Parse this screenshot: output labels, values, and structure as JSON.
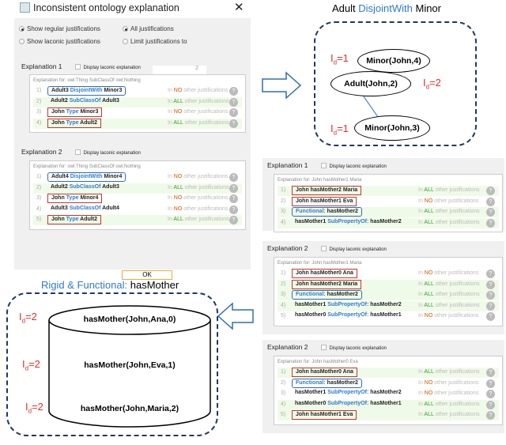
{
  "dialog": {
    "title": "Inconsistent ontology explanation",
    "options": {
      "regular": "Show regular justifications",
      "laconic": "Show laconic justifications",
      "all": "All justifications",
      "limit": "Limit justifications to",
      "limit_value": "2"
    },
    "ok_label": "OK",
    "explanations": [
      {
        "label": "Explanation 1",
        "laconic_label": "Display laconic explanation",
        "for": "Explanation for: owl:Thing SubClassOf owl:Nothing",
        "rows": [
          {
            "n": "1)",
            "parts": [
              [
                "Adult3 ",
                0
              ],
              [
                "DisjointWith",
                1
              ],
              [
                " Minor3",
                0
              ]
            ],
            "box": "blue",
            "status": "NO"
          },
          {
            "n": "2)",
            "parts": [
              [
                "Adult2 ",
                0
              ],
              [
                "SubClassOf",
                1
              ],
              [
                " Adult3",
                0
              ]
            ],
            "box": "",
            "status": "ALL"
          },
          {
            "n": "3)",
            "parts": [
              [
                "John ",
                0
              ],
              [
                "Type",
                1
              ],
              [
                " Minor3",
                0
              ]
            ],
            "box": "red",
            "status": "NO"
          },
          {
            "n": "4)",
            "parts": [
              [
                "John ",
                0
              ],
              [
                "Type",
                1
              ],
              [
                " Adult2",
                0
              ]
            ],
            "box": "red",
            "status": "ALL"
          }
        ]
      },
      {
        "label": "Explanation 2",
        "laconic_label": "Display laconic explanation",
        "for": "Explanation for: owl:Thing SubClassOf owl:Nothing",
        "rows": [
          {
            "n": "1)",
            "parts": [
              [
                "Adult4 ",
                0
              ],
              [
                "DisjointWith",
                1
              ],
              [
                " Minor4",
                0
              ]
            ],
            "box": "blue",
            "status": "NO"
          },
          {
            "n": "2)",
            "parts": [
              [
                "Adult2 ",
                0
              ],
              [
                "SubClassOf",
                1
              ],
              [
                " Adult3",
                0
              ]
            ],
            "box": "",
            "status": "ALL"
          },
          {
            "n": "3)",
            "parts": [
              [
                "John ",
                0
              ],
              [
                "Type",
                1
              ],
              [
                " Minor4",
                0
              ]
            ],
            "box": "red",
            "status": "NO"
          },
          {
            "n": "4)",
            "parts": [
              [
                "Adult3 ",
                0
              ],
              [
                "SubClassOf",
                1
              ],
              [
                " Adult4",
                0
              ]
            ],
            "box": "",
            "status": "NO"
          },
          {
            "n": "5)",
            "parts": [
              [
                "John ",
                0
              ],
              [
                "Type",
                1
              ],
              [
                " Adult2",
                0
              ]
            ],
            "box": "red",
            "status": "ALL"
          }
        ]
      }
    ]
  },
  "panels": [
    {
      "label": "Explanation 1",
      "laconic_label": "Display laconic explanation",
      "for": "Explanation for: John hasMother1 Maria",
      "rows": [
        {
          "n": "1)",
          "parts": [
            [
              "John hasMother2 Maria",
              0
            ]
          ],
          "box": "red",
          "status": "ALL"
        },
        {
          "n": "2)",
          "parts": [
            [
              "John hasMother1 Eva",
              0
            ]
          ],
          "box": "red",
          "status": "NO"
        },
        {
          "n": "3)",
          "parts": [
            [
              "Functional:",
              1
            ],
            [
              " hasMother2",
              0
            ]
          ],
          "box": "blue",
          "status": "ALL"
        },
        {
          "n": "4)",
          "parts": [
            [
              "hasMother1 ",
              0
            ],
            [
              "SubPropertyOf:",
              1
            ],
            [
              " hasMother2",
              0
            ]
          ],
          "box": "",
          "status": "ALL"
        }
      ]
    },
    {
      "label": "Explanation 2",
      "laconic_label": "Display laconic explanation",
      "for": "Explanation for: John hasMother1 Maria",
      "rows": [
        {
          "n": "1)",
          "parts": [
            [
              "John hasMother0 Ana",
              0
            ]
          ],
          "box": "red",
          "status": "NO"
        },
        {
          "n": "2)",
          "parts": [
            [
              "John hasMother2 Maria",
              0
            ]
          ],
          "box": "red",
          "status": "ALL"
        },
        {
          "n": "3)",
          "parts": [
            [
              "Functional:",
              1
            ],
            [
              " hasMother2",
              0
            ]
          ],
          "box": "blue",
          "status": "ALL"
        },
        {
          "n": "4)",
          "parts": [
            [
              "hasMother1 ",
              0
            ],
            [
              "SubPropertyOf:",
              1
            ],
            [
              " hasMother2",
              0
            ]
          ],
          "box": "",
          "status": "ALL"
        },
        {
          "n": "5)",
          "parts": [
            [
              "hasMother0 ",
              0
            ],
            [
              "SubPropertyOf:",
              1
            ],
            [
              " hasMother1",
              0
            ]
          ],
          "box": "",
          "status": "NO"
        }
      ]
    },
    {
      "label": "Explanation 2",
      "laconic_label": "Display laconic explanation",
      "for": "Explanation for: John hasMother0 Eva",
      "rows": [
        {
          "n": "1)",
          "parts": [
            [
              "John hasMother0 Ana",
              0
            ]
          ],
          "box": "red",
          "status": "ALL"
        },
        {
          "n": "2)",
          "parts": [
            [
              "Functional:",
              1
            ],
            [
              " hasMother2",
              0
            ]
          ],
          "box": "blue",
          "status": "NO"
        },
        {
          "n": "3)",
          "parts": [
            [
              "hasMother1 ",
              0
            ],
            [
              "SubPropertyOf:",
              1
            ],
            [
              " hasMother2",
              0
            ]
          ],
          "box": "",
          "status": "NO"
        },
        {
          "n": "4)",
          "parts": [
            [
              "hasMother0 ",
              0
            ],
            [
              "SubPropertyOf:",
              1
            ],
            [
              " hasMother1",
              0
            ]
          ],
          "box": "",
          "status": "ALL"
        },
        {
          "n": "5)",
          "parts": [
            [
              "John hasMother1 Eva",
              0
            ]
          ],
          "box": "red",
          "status": "ALL"
        }
      ]
    }
  ],
  "status_text": {
    "prefix": "In",
    "suffix": "other justifications",
    "help": "?"
  },
  "diagram_top": {
    "title_a": "Adult ",
    "title_b": "DisjointWith",
    "title_c": " Minor",
    "nodes": [
      "Minor(John,4)",
      "Adult(John,2)",
      "Minor(John,3)"
    ],
    "labels": [
      "I",
      "d",
      "=1",
      "=2"
    ]
  },
  "diagram_bottom": {
    "title_a": "Rigid & Functional:",
    "title_b": " hasMother",
    "nodes": [
      "hasMother(John,Ana,0)",
      "hasMother(John,Eva,1)",
      "hasMother(John,Maria,2)"
    ]
  },
  "colors": {
    "keyword": "#2f7ad0",
    "no": "#d35400",
    "all": "#2e9e2e",
    "red_box": "#c0392b",
    "blue_box": "#2e6db5",
    "dash": "#1f3864",
    "id_label": "#e03030"
  }
}
